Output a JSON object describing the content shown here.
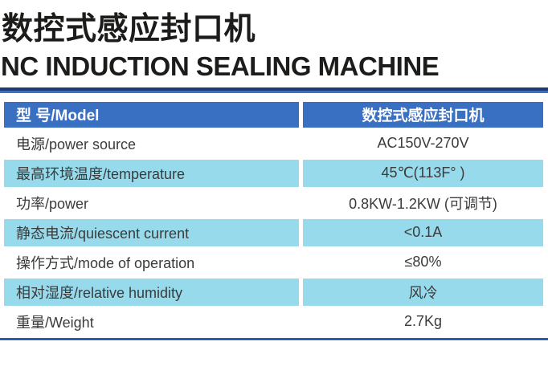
{
  "titles": {
    "cn": "数控式感应封口机",
    "en": "NC INDUCTION SEALING MACHINE"
  },
  "table": {
    "header": {
      "label": "型 号/Model",
      "value": "数控式感应封口机"
    },
    "rows": [
      {
        "label": "电源/power source",
        "value": "AC150V-270V"
      },
      {
        "label": "最高环境温度/temperature",
        "value": "45℃(113F° )"
      },
      {
        "label": "功率/power",
        "value": "0.8KW-1.2KW (可调节)"
      },
      {
        "label": "静态电流/quiescent current",
        "value": "<0.1A"
      },
      {
        "label": "操作方式/mode of operation",
        "value": "≤80%"
      },
      {
        "label": "相对湿度/relative humidity",
        "value": "风冷"
      },
      {
        "label": "重量/Weight",
        "value": "2.7Kg"
      }
    ]
  },
  "colors": {
    "header_bg": "#3a70c2",
    "row_alt_bg": "#97daeb",
    "divider_dark": "#1b3c74",
    "divider_blue": "#3a70c4",
    "bottom_line": "#2b5cb5",
    "title_color": "#1c1c1b",
    "body_text": "#3b3b3b"
  }
}
